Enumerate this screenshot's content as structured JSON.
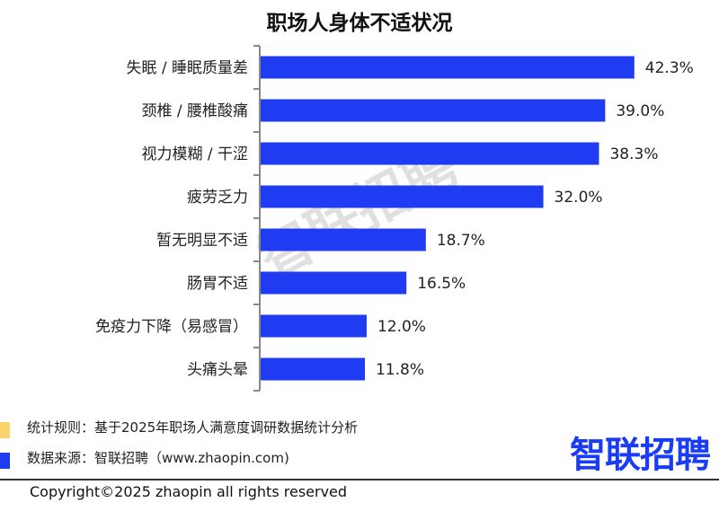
{
  "chart_data": {
    "type": "bar",
    "orientation": "horizontal",
    "title": "职场人身体不适状况",
    "categories": [
      "失眠 / 睡眠质量差",
      "颈椎 / 腰椎酸痛",
      "视力模糊 / 干涩",
      "疲劳乏力",
      "暂无明显不适",
      "肠胃不适",
      "免疫力下降（易感冒）",
      "头痛头晕"
    ],
    "values": [
      42.3,
      39.0,
      38.3,
      32.0,
      18.7,
      16.5,
      12.0,
      11.8
    ],
    "value_labels": [
      "42.3%",
      "39.0%",
      "38.3%",
      "32.0%",
      "18.7%",
      "16.5%",
      "12.0%",
      "11.8%"
    ],
    "unit": "%",
    "xlim": [
      0,
      45
    ],
    "grid": false,
    "bar_color": "#1f3cf2"
  },
  "footer": {
    "rule_text": "统计规则：基于2025年职场人满意度调研数据统计分析",
    "source_text": "数据来源：智联招聘（www.zhaopin.com)",
    "rule_color": "#ffd36b",
    "source_color": "#1f3cf2",
    "logo": "智联招聘",
    "copyright": "Copyright©2025 zhaopin all rights reserved"
  },
  "watermark": "智联招聘"
}
